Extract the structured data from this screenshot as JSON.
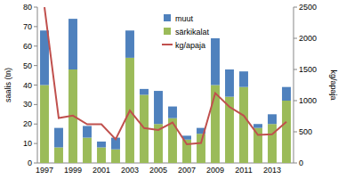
{
  "chart_data": {
    "type": "bar",
    "stacked": true,
    "categories": [
      "1997",
      null,
      "1999",
      null,
      "2001",
      null,
      "2003",
      null,
      "2005",
      null,
      "2007",
      null,
      "2009",
      null,
      "2011",
      null,
      "2013",
      null
    ],
    "series": [
      {
        "name": "muut",
        "color": "#4f81bd",
        "values": [
          28,
          10,
          26,
          6,
          3,
          6,
          14,
          3,
          17,
          6,
          2,
          3,
          24,
          14,
          8,
          2,
          5,
          7
        ]
      },
      {
        "name": "särkikalat",
        "color": "#9bbb59",
        "values": [
          40,
          8,
          48,
          13,
          8,
          7,
          54,
          35,
          20,
          23,
          12,
          15,
          40,
          34,
          39,
          18,
          20,
          32
        ]
      },
      {
        "name": "kg/apaja",
        "type": "line",
        "axis": "y2",
        "color": "#c0504d",
        "values": [
          2500,
          720,
          760,
          620,
          620,
          380,
          840,
          560,
          530,
          650,
          300,
          320,
          1120,
          900,
          760,
          450,
          460,
          660
        ]
      }
    ],
    "y_label": "saalis (tn)",
    "y2_label": "kg/apaja",
    "ylim": [
      0,
      80
    ],
    "yticks": [
      0,
      10,
      20,
      30,
      40,
      50,
      60,
      70,
      80
    ],
    "y2lim": [
      0,
      2500
    ],
    "y2ticks": [
      0,
      500,
      1000,
      1500,
      2000,
      2500
    ],
    "legend": "top-right"
  }
}
